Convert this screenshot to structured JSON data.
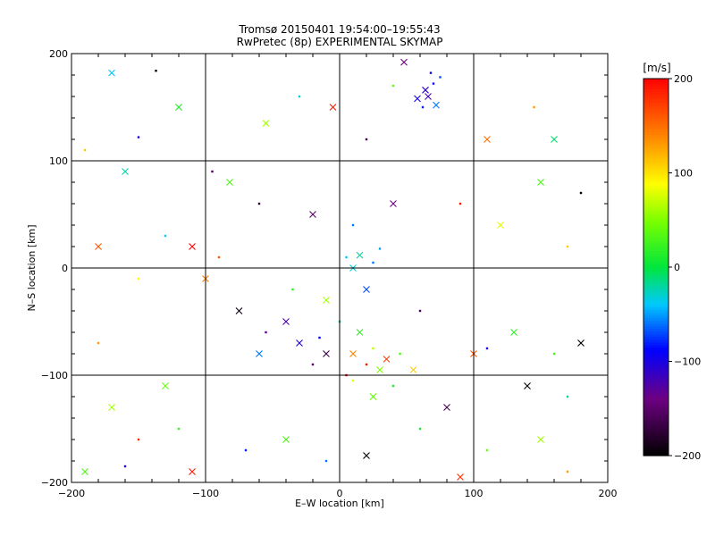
{
  "chart_data": {
    "type": "scatter",
    "title": "Tromsø 20150401 19:54:00–19:55:43",
    "subtitle": "RwPretec (8p) EXPERIMENTAL SKYMAP",
    "xlabel": "E–W location [km]",
    "ylabel": "N–S location [km]",
    "xlim": [
      -200,
      200
    ],
    "ylim": [
      -200,
      200
    ],
    "x_ticks": [
      "−200",
      "−100",
      "0",
      "100",
      "200"
    ],
    "y_ticks": [
      "−200",
      "−100",
      "0",
      "100",
      "200"
    ],
    "grid": true,
    "colorbar": {
      "label": "[m/s]",
      "range": [
        -200,
        200
      ],
      "ticks": [
        "−200",
        "−100",
        "0",
        "100",
        "200"
      ],
      "colormap": "black-purple-blue-cyan-green-yellow-red"
    },
    "markers": [
      "cross",
      "dot"
    ],
    "points": [
      [
        64,
        166,
        -110
      ],
      [
        70,
        172,
        -90
      ],
      [
        58,
        158,
        -100
      ],
      [
        75,
        178,
        -70
      ],
      [
        66,
        160,
        -120
      ],
      [
        62,
        150,
        -80
      ],
      [
        72,
        152,
        -60
      ],
      [
        68,
        182,
        -100
      ],
      [
        48,
        192,
        -140
      ],
      [
        40,
        170,
        40
      ],
      [
        -170,
        182,
        -40
      ],
      [
        -137,
        184,
        -200
      ],
      [
        -120,
        150,
        10
      ],
      [
        -150,
        122,
        -100
      ],
      [
        -82,
        80,
        30
      ],
      [
        -95,
        90,
        -160
      ],
      [
        -55,
        135,
        60
      ],
      [
        -30,
        160,
        -30
      ],
      [
        -5,
        150,
        190
      ],
      [
        20,
        120,
        -170
      ],
      [
        110,
        120,
        150
      ],
      [
        145,
        150,
        130
      ],
      [
        160,
        120,
        -10
      ],
      [
        180,
        70,
        -200
      ],
      [
        150,
        80,
        30
      ],
      [
        -190,
        110,
        110
      ],
      [
        -160,
        90,
        -20
      ],
      [
        -60,
        60,
        -180
      ],
      [
        -20,
        50,
        -150
      ],
      [
        10,
        40,
        -60
      ],
      [
        40,
        60,
        -140
      ],
      [
        90,
        60,
        190
      ],
      [
        120,
        40,
        80
      ],
      [
        170,
        20,
        110
      ],
      [
        -180,
        20,
        160
      ],
      [
        -130,
        30,
        -40
      ],
      [
        -110,
        20,
        200
      ],
      [
        -90,
        10,
        160
      ],
      [
        -100,
        -10,
        140
      ],
      [
        -150,
        -10,
        90
      ],
      [
        -75,
        -40,
        -190
      ],
      [
        -55,
        -60,
        -130
      ],
      [
        -30,
        -70,
        -110
      ],
      [
        -20,
        -90,
        -150
      ],
      [
        -60,
        -80,
        -60
      ],
      [
        5,
        10,
        -40
      ],
      [
        15,
        12,
        -20
      ],
      [
        25,
        5,
        -60
      ],
      [
        10,
        0,
        -30
      ],
      [
        30,
        18,
        -50
      ],
      [
        20,
        -20,
        -70
      ],
      [
        0,
        -50,
        -10
      ],
      [
        15,
        -60,
        20
      ],
      [
        25,
        -75,
        70
      ],
      [
        10,
        -80,
        140
      ],
      [
        20,
        -90,
        190
      ],
      [
        35,
        -85,
        170
      ],
      [
        5,
        -100,
        200
      ],
      [
        30,
        -95,
        50
      ],
      [
        45,
        -80,
        30
      ],
      [
        55,
        -95,
        110
      ],
      [
        40,
        -110,
        10
      ],
      [
        25,
        -120,
        40
      ],
      [
        10,
        -105,
        80
      ],
      [
        -10,
        -80,
        -170
      ],
      [
        -15,
        -65,
        -90
      ],
      [
        -40,
        -50,
        -120
      ],
      [
        -35,
        -20,
        20
      ],
      [
        -10,
        -30,
        60
      ],
      [
        60,
        -40,
        -160
      ],
      [
        100,
        -80,
        160
      ],
      [
        110,
        -75,
        -100
      ],
      [
        130,
        -60,
        20
      ],
      [
        160,
        -80,
        30
      ],
      [
        180,
        -70,
        -200
      ],
      [
        -180,
        -70,
        130
      ],
      [
        -170,
        -130,
        60
      ],
      [
        -150,
        -160,
        180
      ],
      [
        -130,
        -110,
        40
      ],
      [
        -120,
        -150,
        20
      ],
      [
        -110,
        -190,
        190
      ],
      [
        -70,
        -170,
        -80
      ],
      [
        -40,
        -160,
        30
      ],
      [
        -10,
        -180,
        -60
      ],
      [
        20,
        -175,
        -200
      ],
      [
        60,
        -150,
        10
      ],
      [
        80,
        -130,
        -160
      ],
      [
        110,
        -170,
        40
      ],
      [
        150,
        -160,
        60
      ],
      [
        170,
        -120,
        -20
      ],
      [
        140,
        -110,
        -200
      ],
      [
        170,
        -190,
        130
      ],
      [
        -190,
        -190,
        30
      ],
      [
        -160,
        -185,
        -110
      ],
      [
        90,
        -195,
        180
      ]
    ]
  }
}
